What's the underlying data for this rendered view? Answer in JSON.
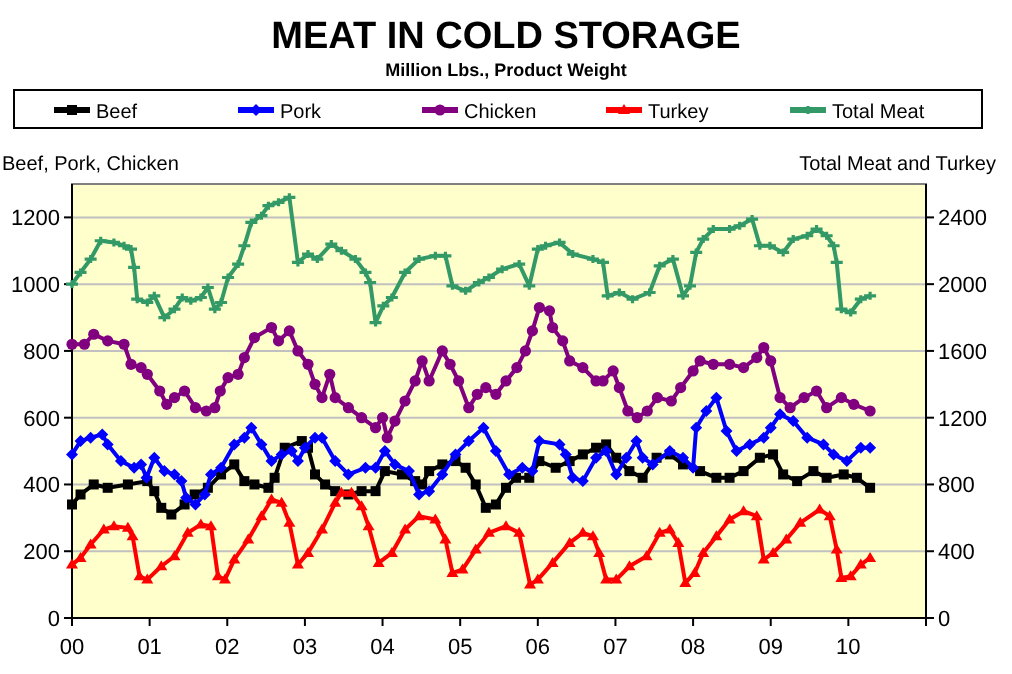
{
  "chart_data": {
    "type": "line",
    "title": "MEAT IN COLD STORAGE",
    "subtitle": "Million Lbs., Product Weight",
    "ylabel": "Beef, Pork, Chicken",
    "y2label": "Total Meat and Turkey",
    "xlim": [
      2000,
      2011
    ],
    "xticks": [
      {
        "value": 2000,
        "label": "00"
      },
      {
        "value": 2001,
        "label": "01"
      },
      {
        "value": 2002,
        "label": "02"
      },
      {
        "value": 2003,
        "label": "03"
      },
      {
        "value": 2004,
        "label": "04"
      },
      {
        "value": 2005,
        "label": "05"
      },
      {
        "value": 2006,
        "label": "06"
      },
      {
        "value": 2007,
        "label": "07"
      },
      {
        "value": 2008,
        "label": "08"
      },
      {
        "value": 2009,
        "label": "09"
      },
      {
        "value": 2010,
        "label": "10"
      },
      {
        "value": 2011,
        "label": null
      }
    ],
    "ylim": [
      0,
      1300
    ],
    "yticks": [
      0,
      200,
      400,
      600,
      800,
      1000,
      1200
    ],
    "y2lim": [
      0,
      2600
    ],
    "y2ticks": [
      0,
      400,
      800,
      1200,
      1600,
      2000,
      2400
    ],
    "grid": "y",
    "legend": "top",
    "series": [
      {
        "name": "Beef",
        "color": "#000000",
        "marker": "square",
        "x": [
          2000,
          2000.11,
          2000.28,
          2000.46,
          2000.72,
          2000.97,
          2001.06,
          2001.15,
          2001.28,
          2001.45,
          2001.58,
          2001.75,
          2001.92,
          2002.09,
          2002.22,
          2002.35,
          2002.53,
          2002.61,
          2002.74,
          2002.96,
          2003.04,
          2003.13,
          2003.26,
          2003.39,
          2003.56,
          2003.73,
          2003.91,
          2004.03,
          2004.25,
          2004.42,
          2004.51,
          2004.6,
          2004.77,
          2004.94,
          2005.07,
          2005.2,
          2005.33,
          2005.46,
          2005.59,
          2005.72,
          2005.89,
          2006.02,
          2006.23,
          2006.41,
          2006.58,
          2006.75,
          2006.88,
          2007.01,
          2007.18,
          2007.35,
          2007.53,
          2007.7,
          2007.87,
          2008.09,
          2008.3,
          2008.47,
          2008.65,
          2008.86,
          2009.03,
          2009.16,
          2009.34,
          2009.55,
          2009.72,
          2009.94,
          2010.11,
          2010.28
        ],
        "values": [
          340,
          370,
          400,
          390,
          400,
          410,
          380,
          330,
          310,
          340,
          370,
          390,
          430,
          460,
          410,
          400,
          390,
          420,
          510,
          530,
          510,
          430,
          400,
          380,
          370,
          380,
          380,
          440,
          430,
          410,
          400,
          440,
          460,
          470,
          450,
          400,
          330,
          340,
          390,
          420,
          420,
          470,
          450,
          470,
          490,
          510,
          520,
          480,
          440,
          420,
          480,
          490,
          460,
          440,
          420,
          420,
          440,
          480,
          490,
          430,
          410,
          440,
          420,
          430,
          420,
          390
        ]
      },
      {
        "name": "Pork",
        "color": "#0000ff",
        "marker": "diamond",
        "x": [
          2000,
          2000.11,
          2000.24,
          2000.39,
          2000.46,
          2000.63,
          2000.8,
          2000.89,
          2000.96,
          2001.06,
          2001.19,
          2001.32,
          2001.41,
          2001.47,
          2001.59,
          2001.71,
          2001.79,
          2001.92,
          2002.09,
          2002.22,
          2002.31,
          2002.44,
          2002.57,
          2002.7,
          2002.83,
          2002.91,
          2003,
          2003.13,
          2003.22,
          2003.39,
          2003.56,
          2003.78,
          2003.91,
          2004.03,
          2004.16,
          2004.34,
          2004.47,
          2004.6,
          2004.77,
          2004.94,
          2005.11,
          2005.3,
          2005.46,
          2005.63,
          2005.8,
          2005.93,
          2006.02,
          2006.28,
          2006.36,
          2006.45,
          2006.58,
          2006.75,
          2006.88,
          2007.01,
          2007.14,
          2007.27,
          2007.35,
          2007.48,
          2007.7,
          2007.87,
          2008,
          2008.04,
          2008.17,
          2008.3,
          2008.43,
          2008.56,
          2008.73,
          2008.91,
          2009,
          2009.12,
          2009.29,
          2009.47,
          2009.68,
          2009.81,
          2009.98,
          2010.16,
          2010.28
        ],
        "values": [
          490,
          530,
          540,
          550,
          520,
          470,
          450,
          460,
          420,
          480,
          440,
          430,
          410,
          360,
          340,
          370,
          430,
          450,
          520,
          540,
          570,
          520,
          470,
          490,
          500,
          470,
          510,
          540,
          540,
          470,
          430,
          450,
          450,
          500,
          460,
          440,
          370,
          380,
          430,
          490,
          530,
          570,
          500,
          430,
          450,
          440,
          530,
          520,
          490,
          420,
          410,
          480,
          500,
          430,
          480,
          530,
          480,
          460,
          500,
          480,
          450,
          570,
          620,
          660,
          560,
          500,
          520,
          540,
          570,
          610,
          590,
          540,
          520,
          490,
          470,
          510,
          510
        ]
      },
      {
        "name": "Chicken",
        "color": "#800080",
        "marker": "circle",
        "x": [
          2000,
          2000.16,
          2000.28,
          2000.46,
          2000.67,
          2000.76,
          2000.89,
          2000.97,
          2001.13,
          2001.22,
          2001.32,
          2001.45,
          2001.59,
          2001.73,
          2001.84,
          2001.91,
          2002.01,
          2002.14,
          2002.22,
          2002.35,
          2002.57,
          2002.66,
          2002.8,
          2002.91,
          2003.04,
          2003.13,
          2003.22,
          2003.32,
          2003.39,
          2003.56,
          2003.73,
          2003.91,
          2004,
          2004.06,
          2004.16,
          2004.29,
          2004.42,
          2004.51,
          2004.6,
          2004.77,
          2004.87,
          2004.98,
          2005.11,
          2005.22,
          2005.33,
          2005.46,
          2005.59,
          2005.73,
          2005.84,
          2005.93,
          2006.02,
          2006.15,
          2006.19,
          2006.32,
          2006.41,
          2006.58,
          2006.75,
          2006.84,
          2006.97,
          2007.05,
          2007.16,
          2007.28,
          2007.41,
          2007.54,
          2007.72,
          2007.84,
          2008,
          2008.09,
          2008.26,
          2008.47,
          2008.65,
          2008.82,
          2008.91,
          2009,
          2009.12,
          2009.25,
          2009.43,
          2009.59,
          2009.72,
          2009.91,
          2010.07,
          2010.28
        ],
        "values": [
          820,
          820,
          850,
          830,
          820,
          760,
          750,
          730,
          680,
          640,
          660,
          680,
          630,
          620,
          630,
          680,
          720,
          730,
          780,
          840,
          870,
          830,
          860,
          800,
          760,
          700,
          660,
          730,
          660,
          630,
          600,
          570,
          600,
          540,
          590,
          650,
          710,
          770,
          710,
          800,
          760,
          710,
          630,
          670,
          690,
          670,
          710,
          750,
          800,
          860,
          930,
          920,
          870,
          830,
          770,
          750,
          710,
          710,
          740,
          690,
          620,
          600,
          620,
          660,
          650,
          690,
          740,
          770,
          760,
          760,
          750,
          780,
          810,
          770,
          660,
          630,
          660,
          680,
          630,
          660,
          640,
          620
        ]
      },
      {
        "name": "Turkey",
        "color": "#ff0000",
        "marker": "triangle",
        "axis": "y2",
        "x": [
          2000,
          2000.11,
          2000.24,
          2000.41,
          2000.54,
          2000.72,
          2000.78,
          2000.87,
          2000.97,
          2001.15,
          2001.32,
          2001.49,
          2001.66,
          2001.79,
          2001.88,
          2001.97,
          2002.09,
          2002.27,
          2002.44,
          2002.57,
          2002.7,
          2002.8,
          2002.91,
          2003.04,
          2003.22,
          2003.39,
          2003.47,
          2003.6,
          2003.73,
          2003.82,
          2003.95,
          2004.12,
          2004.29,
          2004.47,
          2004.68,
          2004.81,
          2004.9,
          2005.03,
          2005.2,
          2005.37,
          2005.59,
          2005.76,
          2005.9,
          2006,
          2006.19,
          2006.41,
          2006.58,
          2006.71,
          2006.79,
          2006.88,
          2007.01,
          2007.18,
          2007.4,
          2007.57,
          2007.7,
          2007.81,
          2007.9,
          2008.02,
          2008.13,
          2008.3,
          2008.47,
          2008.65,
          2008.82,
          2008.91,
          2009.03,
          2009.2,
          2009.38,
          2009.63,
          2009.76,
          2009.85,
          2009.91,
          2010.03,
          2010.16,
          2010.28
        ],
        "values": [
          320,
          360,
          440,
          530,
          550,
          540,
          490,
          250,
          230,
          310,
          370,
          510,
          560,
          550,
          250,
          230,
          350,
          470,
          610,
          710,
          690,
          570,
          320,
          390,
          530,
          690,
          750,
          750,
          670,
          550,
          330,
          390,
          530,
          610,
          590,
          470,
          270,
          290,
          410,
          510,
          550,
          510,
          200,
          230,
          330,
          450,
          510,
          490,
          390,
          230,
          230,
          310,
          370,
          510,
          530,
          450,
          210,
          270,
          390,
          490,
          590,
          640,
          610,
          350,
          390,
          470,
          570,
          650,
          610,
          410,
          240,
          250,
          320,
          360
        ]
      },
      {
        "name": "Total Meat",
        "color": "#339966",
        "marker": "cross",
        "axis": "y2",
        "x": [
          2000,
          2000.11,
          2000.24,
          2000.37,
          2000.54,
          2000.67,
          2000.76,
          2000.8,
          2000.84,
          2000.97,
          2001.06,
          2001.19,
          2001.32,
          2001.42,
          2001.53,
          2001.66,
          2001.75,
          2001.84,
          2001.92,
          2002.01,
          2002.14,
          2002.22,
          2002.31,
          2002.44,
          2002.53,
          2002.66,
          2002.8,
          2002.91,
          2003.04,
          2003.16,
          2003.34,
          2003.47,
          2003.65,
          2003.78,
          2003.84,
          2003.91,
          2004.01,
          2004.12,
          2004.29,
          2004.47,
          2004.68,
          2004.81,
          2004.9,
          2005.07,
          2005.24,
          2005.37,
          2005.54,
          2005.76,
          2005.89,
          2006,
          2006.1,
          2006.28,
          2006.45,
          2006.71,
          2006.84,
          2006.9,
          2007.05,
          2007.22,
          2007.44,
          2007.57,
          2007.74,
          2007.87,
          2007.96,
          2008.04,
          2008.13,
          2008.26,
          2008.47,
          2008.6,
          2008.76,
          2008.86,
          2008.99,
          2009.16,
          2009.29,
          2009.47,
          2009.59,
          2009.72,
          2009.81,
          2009.85,
          2009.91,
          2010.03,
          2010.16,
          2010.28
        ],
        "values": [
          2000,
          2070,
          2150,
          2260,
          2250,
          2230,
          2210,
          2100,
          1910,
          1890,
          1930,
          1800,
          1850,
          1920,
          1900,
          1920,
          1980,
          1850,
          1890,
          2040,
          2120,
          2230,
          2370,
          2410,
          2470,
          2490,
          2520,
          2130,
          2180,
          2150,
          2240,
          2200,
          2150,
          2070,
          2010,
          1770,
          1870,
          1920,
          2070,
          2150,
          2170,
          2170,
          1990,
          1960,
          2010,
          2040,
          2090,
          2120,
          1990,
          2210,
          2230,
          2250,
          2180,
          2150,
          2130,
          1930,
          1950,
          1910,
          1950,
          2110,
          2150,
          1930,
          1990,
          2190,
          2270,
          2330,
          2330,
          2350,
          2390,
          2230,
          2230,
          2190,
          2270,
          2290,
          2330,
          2290,
          2230,
          2130,
          1850,
          1830,
          1910,
          1930
        ]
      }
    ]
  }
}
